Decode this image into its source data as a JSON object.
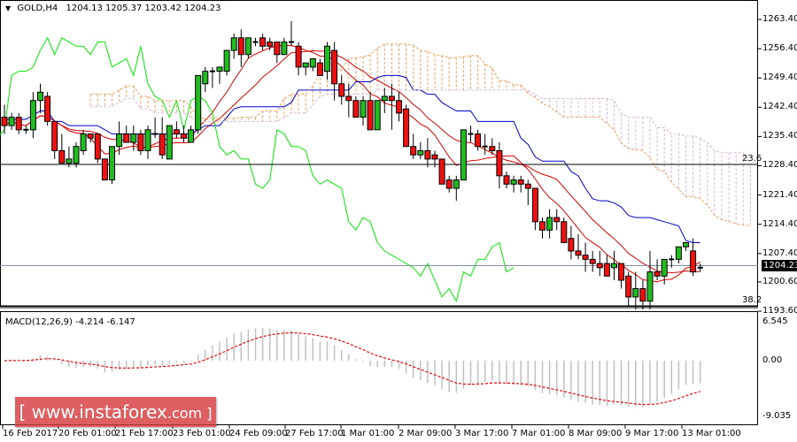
{
  "header": {
    "symbol": "GOLD,H4",
    "ohlc": "1204.13 1205.37 1203.42 1204.23"
  },
  "macd": {
    "label": "MACD(12,26,9) -4.214 -6.147",
    "axis": [
      "6.545",
      "0.00",
      "-9.035"
    ]
  },
  "price_axis": [
    "1263.40",
    "1256.40",
    "1249.40",
    "1242.40",
    "1235.40",
    "1228.40",
    "1221.40",
    "1214.40",
    "1207.40",
    "1200.60",
    "1193.60"
  ],
  "current_price": "1204.23",
  "fib_levels": [
    {
      "label": "23.6",
      "price": 1228.4
    },
    {
      "label": "38.2",
      "price": 1195.0
    }
  ],
  "time_axis": [
    "16 Feb 2017",
    "20 Feb 01:00",
    "21 Feb 17:00",
    "23 Feb 01:00",
    "24 Feb 09:00",
    "27 Feb 17:00",
    "1 Mar 01:00",
    "2 Mar 09:00",
    "3 Mar 17:00",
    "7 Mar 01:00",
    "8 Mar 09:00",
    "9 Mar 17:00",
    "13 Mar 01:00"
  ],
  "watermark": {
    "main": "[ www.instaforex",
    "suffix": ".com ]"
  },
  "colors": {
    "bull": "#22bb22",
    "bear": "#ee1111",
    "tenkan": "#dd0000",
    "kijun": "#0000cc",
    "chikou": "#00ee00",
    "cloud_a": "#f0a060",
    "cloud_b": "#d8b8d8",
    "macd_hist": "#c0c0c0",
    "macd_signal": "#ee0000"
  },
  "chart_data": {
    "type": "candlestick",
    "title": "GOLD,H4",
    "ylim": [
      1193.6,
      1263.4
    ],
    "indicators": [
      "Ichimoku",
      "MACD(12,26,9)",
      "Fibonacci 23.6 / 38.2"
    ],
    "candles": [
      [
        1240,
        1243,
        1236,
        1238
      ],
      [
        1238,
        1241,
        1237,
        1240
      ],
      [
        1240,
        1241,
        1236,
        1237
      ],
      [
        1237,
        1238,
        1236,
        1237
      ],
      [
        1237,
        1246,
        1235,
        1244
      ],
      [
        1244,
        1248,
        1241,
        1246
      ],
      [
        1245,
        1246,
        1238,
        1239
      ],
      [
        1239,
        1239,
        1230,
        1232
      ],
      [
        1232,
        1236,
        1230,
        1229
      ],
      [
        1229,
        1233,
        1228,
        1230
      ],
      [
        1229,
        1234,
        1228,
        1233
      ],
      [
        1232,
        1237,
        1231,
        1236
      ],
      [
        1236,
        1236,
        1234,
        1235
      ],
      [
        1236,
        1236,
        1229,
        1230
      ],
      [
        1230,
        1230,
        1226,
        1225
      ],
      [
        1225,
        1233,
        1224,
        1233
      ],
      [
        1233,
        1239,
        1231,
        1236
      ],
      [
        1236,
        1238,
        1235,
        1234
      ],
      [
        1234,
        1238,
        1232,
        1236
      ],
      [
        1236,
        1237,
        1231,
        1232
      ],
      [
        1232,
        1238,
        1230,
        1237
      ],
      [
        1236,
        1240,
        1235,
        1236
      ],
      [
        1236,
        1240,
        1230,
        1231
      ],
      [
        1230,
        1238,
        1230,
        1238
      ],
      [
        1237,
        1239,
        1235,
        1236
      ],
      [
        1236,
        1238,
        1234,
        1235
      ],
      [
        1234,
        1238,
        1234,
        1237
      ],
      [
        1237,
        1250,
        1236,
        1250
      ],
      [
        1248,
        1252,
        1246,
        1251
      ],
      [
        1251,
        1252,
        1247,
        1251
      ],
      [
        1251,
        1252,
        1248,
        1252
      ],
      [
        1251,
        1256,
        1250,
        1256
      ],
      [
        1256,
        1260,
        1254,
        1259
      ],
      [
        1259,
        1261,
        1252,
        1255
      ],
      [
        1255,
        1259,
        1254,
        1259
      ],
      [
        1258,
        1259,
        1257,
        1258
      ],
      [
        1259,
        1260,
        1256,
        1257
      ],
      [
        1258,
        1259,
        1256,
        1257
      ],
      [
        1258,
        1258,
        1253,
        1255
      ],
      [
        1255,
        1259,
        1255,
        1258
      ],
      [
        1258,
        1263,
        1257,
        1258
      ],
      [
        1257,
        1258,
        1250,
        1252
      ],
      [
        1252,
        1253,
        1250,
        1253
      ],
      [
        1252,
        1254,
        1251,
        1254
      ],
      [
        1253,
        1254,
        1250,
        1250
      ],
      [
        1251,
        1258,
        1249,
        1257
      ],
      [
        1256,
        1258,
        1244,
        1248
      ],
      [
        1248,
        1250,
        1243,
        1245
      ],
      [
        1245,
        1248,
        1240,
        1244
      ],
      [
        1244,
        1245,
        1240,
        1240
      ],
      [
        1240,
        1245,
        1238,
        1244
      ],
      [
        1244,
        1246,
        1240,
        1237
      ],
      [
        1237,
        1244,
        1237,
        1244
      ],
      [
        1244,
        1247,
        1241,
        1245
      ],
      [
        1245,
        1248,
        1237,
        1244
      ],
      [
        1244,
        1246,
        1239,
        1241
      ],
      [
        1242,
        1243,
        1236,
        1233
      ],
      [
        1233,
        1236,
        1230,
        1231
      ],
      [
        1231,
        1234,
        1230,
        1232
      ],
      [
        1232,
        1235,
        1228,
        1230
      ],
      [
        1231,
        1232,
        1228,
        1230
      ],
      [
        1230,
        1230,
        1224,
        1224
      ],
      [
        1225,
        1226,
        1222,
        1223
      ],
      [
        1223,
        1226,
        1220,
        1225
      ],
      [
        1225,
        1236,
        1225,
        1237
      ],
      [
        1236,
        1238,
        1234,
        1236
      ],
      [
        1236,
        1237,
        1232,
        1233
      ],
      [
        1233,
        1236,
        1231,
        1233
      ],
      [
        1233,
        1235,
        1231,
        1232
      ],
      [
        1232,
        1234,
        1223,
        1226
      ],
      [
        1226,
        1227,
        1223,
        1224
      ],
      [
        1224,
        1226,
        1222,
        1225
      ],
      [
        1225,
        1226,
        1222,
        1224
      ],
      [
        1224,
        1225,
        1219,
        1223
      ],
      [
        1223,
        1223,
        1213,
        1215
      ],
      [
        1215,
        1216,
        1211,
        1213
      ],
      [
        1213,
        1218,
        1211,
        1216
      ],
      [
        1216,
        1218,
        1213,
        1215
      ],
      [
        1215,
        1216,
        1211,
        1210
      ],
      [
        1211,
        1214,
        1206,
        1208
      ],
      [
        1208,
        1212,
        1206,
        1207
      ],
      [
        1207,
        1210,
        1203,
        1206
      ],
      [
        1206,
        1208,
        1203,
        1205
      ],
      [
        1205,
        1208,
        1202,
        1204
      ],
      [
        1205,
        1207,
        1202,
        1202
      ],
      [
        1204,
        1208,
        1201,
        1205
      ],
      [
        1205,
        1205,
        1199,
        1201
      ],
      [
        1202,
        1203,
        1195,
        1197
      ],
      [
        1197,
        1203,
        1194,
        1199
      ],
      [
        1199,
        1201,
        1194,
        1196
      ],
      [
        1196,
        1208,
        1194,
        1203
      ],
      [
        1203,
        1206,
        1201,
        1202
      ],
      [
        1202,
        1206,
        1200,
        1206
      ],
      [
        1206,
        1207,
        1204,
        1206
      ],
      [
        1206,
        1209,
        1205,
        1209
      ],
      [
        1209,
        1210,
        1208,
        1210
      ],
      [
        1208,
        1211,
        1202,
        1203
      ],
      [
        1204,
        1205,
        1203,
        1204
      ]
    ]
  }
}
